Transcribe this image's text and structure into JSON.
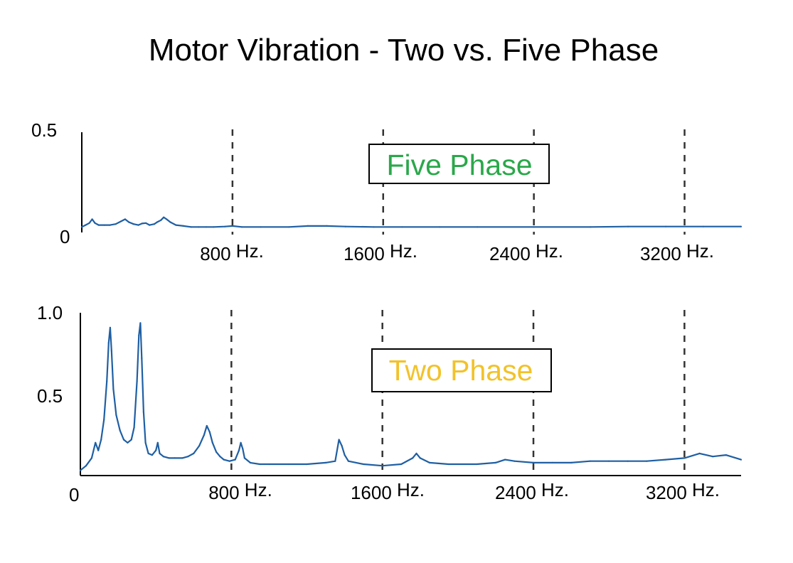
{
  "title": "Motor Vibration - Two vs. Five Phase",
  "colors": {
    "line": "#1f5fa3",
    "five_phase_label": "#2aa84a",
    "two_phase_label": "#f2c22a",
    "axis": "#000000",
    "guide": "#333333"
  },
  "chart_data": [
    {
      "type": "line",
      "name": "Five Phase",
      "legend_text": "Five Phase",
      "ylim": [
        0,
        0.5
      ],
      "xlim": [
        0,
        3500
      ],
      "yticks": [
        {
          "value": 0,
          "label": "0"
        },
        {
          "value": 0.5,
          "label": "0.5"
        }
      ],
      "xticks": [
        {
          "value": 800,
          "num": "800",
          "unit": "Hz."
        },
        {
          "value": 1600,
          "num": "1600",
          "unit": "Hz."
        },
        {
          "value": 2400,
          "num": "2400",
          "unit": "Hz."
        },
        {
          "value": 3200,
          "num": "3200",
          "unit": "Hz."
        }
      ],
      "points": [
        [
          0,
          0.01
        ],
        [
          20,
          0.02
        ],
        [
          40,
          0.03
        ],
        [
          55,
          0.05
        ],
        [
          70,
          0.03
        ],
        [
          90,
          0.02
        ],
        [
          120,
          0.02
        ],
        [
          150,
          0.02
        ],
        [
          180,
          0.025
        ],
        [
          210,
          0.04
        ],
        [
          230,
          0.05
        ],
        [
          250,
          0.035
        ],
        [
          275,
          0.025
        ],
        [
          300,
          0.02
        ],
        [
          320,
          0.028
        ],
        [
          340,
          0.03
        ],
        [
          360,
          0.02
        ],
        [
          385,
          0.025
        ],
        [
          400,
          0.035
        ],
        [
          420,
          0.045
        ],
        [
          435,
          0.06
        ],
        [
          450,
          0.05
        ],
        [
          470,
          0.035
        ],
        [
          500,
          0.02
        ],
        [
          540,
          0.015
        ],
        [
          580,
          0.01
        ],
        [
          620,
          0.01
        ],
        [
          660,
          0.01
        ],
        [
          700,
          0.01
        ],
        [
          760,
          0.012
        ],
        [
          800,
          0.015
        ],
        [
          850,
          0.01
        ],
        [
          950,
          0.01
        ],
        [
          1100,
          0.01
        ],
        [
          1200,
          0.015
        ],
        [
          1300,
          0.015
        ],
        [
          1400,
          0.012
        ],
        [
          1550,
          0.01
        ],
        [
          1700,
          0.01
        ],
        [
          1900,
          0.01
        ],
        [
          2100,
          0.01
        ],
        [
          2400,
          0.01
        ],
        [
          2700,
          0.01
        ],
        [
          2900,
          0.012
        ],
        [
          3100,
          0.012
        ],
        [
          3300,
          0.012
        ],
        [
          3500,
          0.012
        ]
      ]
    },
    {
      "type": "line",
      "name": "Two Phase",
      "legend_text": "Two Phase",
      "ylim": [
        0,
        1.0
      ],
      "xlim": [
        0,
        3500
      ],
      "yticks": [
        {
          "value": 0,
          "label": "0"
        },
        {
          "value": 0.5,
          "label": "0.5"
        },
        {
          "value": 1.0,
          "label": "1.0"
        }
      ],
      "xticks": [
        {
          "value": 800,
          "num": "800",
          "unit": "Hz."
        },
        {
          "value": 1600,
          "num": "1600",
          "unit": "Hz."
        },
        {
          "value": 2400,
          "num": "2400",
          "unit": "Hz."
        },
        {
          "value": 3200,
          "num": "3200",
          "unit": "Hz."
        }
      ],
      "points": [
        [
          0,
          0.02
        ],
        [
          30,
          0.05
        ],
        [
          60,
          0.1
        ],
        [
          80,
          0.2
        ],
        [
          95,
          0.15
        ],
        [
          110,
          0.22
        ],
        [
          125,
          0.35
        ],
        [
          140,
          0.6
        ],
        [
          150,
          0.85
        ],
        [
          158,
          0.95
        ],
        [
          165,
          0.8
        ],
        [
          175,
          0.55
        ],
        [
          190,
          0.38
        ],
        [
          210,
          0.28
        ],
        [
          230,
          0.22
        ],
        [
          250,
          0.2
        ],
        [
          270,
          0.22
        ],
        [
          285,
          0.3
        ],
        [
          300,
          0.6
        ],
        [
          310,
          0.9
        ],
        [
          318,
          0.98
        ],
        [
          325,
          0.75
        ],
        [
          335,
          0.4
        ],
        [
          345,
          0.2
        ],
        [
          360,
          0.13
        ],
        [
          380,
          0.12
        ],
        [
          400,
          0.15
        ],
        [
          410,
          0.2
        ],
        [
          420,
          0.13
        ],
        [
          440,
          0.11
        ],
        [
          470,
          0.1
        ],
        [
          500,
          0.1
        ],
        [
          540,
          0.1
        ],
        [
          570,
          0.11
        ],
        [
          600,
          0.13
        ],
        [
          630,
          0.18
        ],
        [
          655,
          0.25
        ],
        [
          670,
          0.31
        ],
        [
          685,
          0.27
        ],
        [
          700,
          0.2
        ],
        [
          720,
          0.14
        ],
        [
          740,
          0.11
        ],
        [
          760,
          0.09
        ],
        [
          790,
          0.08
        ],
        [
          820,
          0.09
        ],
        [
          840,
          0.15
        ],
        [
          850,
          0.2
        ],
        [
          860,
          0.16
        ],
        [
          870,
          0.1
        ],
        [
          900,
          0.07
        ],
        [
          950,
          0.06
        ],
        [
          1000,
          0.06
        ],
        [
          1100,
          0.06
        ],
        [
          1200,
          0.06
        ],
        [
          1300,
          0.07
        ],
        [
          1350,
          0.08
        ],
        [
          1370,
          0.22
        ],
        [
          1385,
          0.18
        ],
        [
          1400,
          0.12
        ],
        [
          1420,
          0.08
        ],
        [
          1500,
          0.06
        ],
        [
          1600,
          0.05
        ],
        [
          1700,
          0.06
        ],
        [
          1760,
          0.1
        ],
        [
          1780,
          0.13
        ],
        [
          1800,
          0.1
        ],
        [
          1850,
          0.07
        ],
        [
          1950,
          0.06
        ],
        [
          2100,
          0.06
        ],
        [
          2200,
          0.07
        ],
        [
          2250,
          0.09
        ],
        [
          2300,
          0.08
        ],
        [
          2400,
          0.07
        ],
        [
          2500,
          0.07
        ],
        [
          2600,
          0.07
        ],
        [
          2700,
          0.08
        ],
        [
          2800,
          0.08
        ],
        [
          2900,
          0.08
        ],
        [
          3000,
          0.08
        ],
        [
          3100,
          0.09
        ],
        [
          3200,
          0.1
        ],
        [
          3280,
          0.13
        ],
        [
          3350,
          0.11
        ],
        [
          3420,
          0.12
        ],
        [
          3500,
          0.09
        ]
      ]
    }
  ]
}
